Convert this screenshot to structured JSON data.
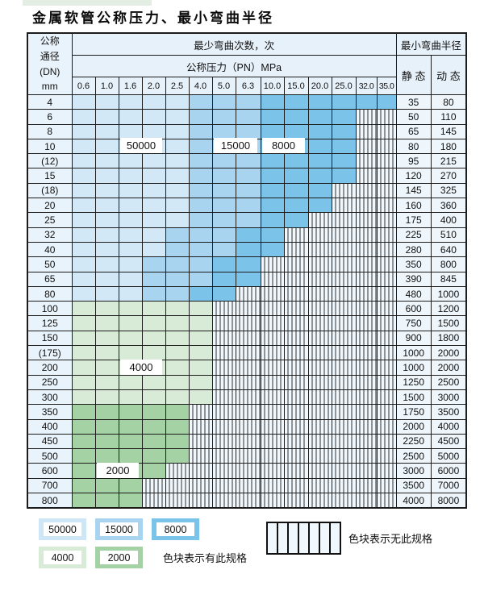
{
  "title": "金属软管公称压力、最小弯曲半径",
  "table": {
    "corner_lines": [
      "公称",
      "通径",
      "(DN)",
      "mm"
    ],
    "bend_cycles_header": "最少弯曲次数，次",
    "pressure_header": "公称压力（PN）MPa",
    "min_radius_header": "最小弯曲半径",
    "static_header": "静 态",
    "dynamic_header": "动 态",
    "pressure_columns": [
      "0.6",
      "1.0",
      "1.6",
      "2.0",
      "2.5",
      "4.0",
      "5.0",
      "6.3",
      "10.0",
      "15.0",
      "20.0",
      "25.0",
      "32.0",
      "35.0"
    ],
    "rows": [
      {
        "dn": "4",
        "zone": "blue",
        "colored": 14,
        "med_from": 5,
        "dark_from": 8,
        "static": "35",
        "dynamic": "80"
      },
      {
        "dn": "6",
        "zone": "blue",
        "colored": 12,
        "med_from": 5,
        "dark_from": 8,
        "static": "50",
        "dynamic": "110"
      },
      {
        "dn": "8",
        "zone": "blue",
        "colored": 12,
        "med_from": 5,
        "dark_from": 8,
        "static": "65",
        "dynamic": "145"
      },
      {
        "dn": "10",
        "zone": "blue",
        "colored": 12,
        "med_from": 5,
        "dark_from": 8,
        "static": "80",
        "dynamic": "180"
      },
      {
        "dn": "(12)",
        "zone": "blue",
        "colored": 12,
        "med_from": 5,
        "dark_from": 8,
        "static": "95",
        "dynamic": "215"
      },
      {
        "dn": "15",
        "zone": "blue",
        "colored": 12,
        "med_from": 5,
        "dark_from": 8,
        "static": "120",
        "dynamic": "270"
      },
      {
        "dn": "(18)",
        "zone": "blue",
        "colored": 11,
        "med_from": 5,
        "dark_from": 8,
        "static": "145",
        "dynamic": "325"
      },
      {
        "dn": "20",
        "zone": "blue",
        "colored": 11,
        "med_from": 5,
        "dark_from": 8,
        "static": "160",
        "dynamic": "360"
      },
      {
        "dn": "25",
        "zone": "blue",
        "colored": 10,
        "med_from": 5,
        "dark_from": 8,
        "static": "175",
        "dynamic": "400"
      },
      {
        "dn": "32",
        "zone": "blue",
        "colored": 9,
        "med_from": 4,
        "dark_from": 7,
        "static": "225",
        "dynamic": "510"
      },
      {
        "dn": "40",
        "zone": "blue",
        "colored": 9,
        "med_from": 4,
        "dark_from": 7,
        "static": "280",
        "dynamic": "640"
      },
      {
        "dn": "50",
        "zone": "blue",
        "colored": 8,
        "med_from": 3,
        "dark_from": 6,
        "static": "350",
        "dynamic": "800"
      },
      {
        "dn": "65",
        "zone": "blue",
        "colored": 8,
        "med_from": 3,
        "dark_from": 6,
        "static": "390",
        "dynamic": "845"
      },
      {
        "dn": "80",
        "zone": "blue",
        "colored": 7,
        "med_from": 3,
        "dark_from": 5,
        "static": "480",
        "dynamic": "1000"
      },
      {
        "dn": "100",
        "zone": "green-light",
        "colored": 6,
        "static": "600",
        "dynamic": "1200"
      },
      {
        "dn": "125",
        "zone": "green-light",
        "colored": 6,
        "static": "750",
        "dynamic": "1500"
      },
      {
        "dn": "150",
        "zone": "green-light",
        "colored": 6,
        "static": "900",
        "dynamic": "1800"
      },
      {
        "dn": "(175)",
        "zone": "green-light",
        "colored": 6,
        "static": "1000",
        "dynamic": "2000"
      },
      {
        "dn": "200",
        "zone": "green-light",
        "colored": 6,
        "static": "1000",
        "dynamic": "2000"
      },
      {
        "dn": "250",
        "zone": "green-light",
        "colored": 6,
        "static": "1250",
        "dynamic": "2500"
      },
      {
        "dn": "300",
        "zone": "green-light",
        "colored": 6,
        "static": "1500",
        "dynamic": "3000"
      },
      {
        "dn": "350",
        "zone": "green-mid",
        "colored": 5,
        "static": "1750",
        "dynamic": "3500"
      },
      {
        "dn": "400",
        "zone": "green-mid",
        "colored": 5,
        "static": "2000",
        "dynamic": "4000"
      },
      {
        "dn": "450",
        "zone": "green-mid",
        "colored": 5,
        "static": "2250",
        "dynamic": "4500"
      },
      {
        "dn": "500",
        "zone": "green-mid",
        "colored": 5,
        "static": "2500",
        "dynamic": "5000"
      },
      {
        "dn": "600",
        "zone": "green-mid",
        "colored": 4,
        "static": "3000",
        "dynamic": "6000"
      },
      {
        "dn": "700",
        "zone": "green-mid",
        "colored": 3,
        "static": "3500",
        "dynamic": "7000"
      },
      {
        "dn": "800",
        "zone": "green-mid",
        "colored": 3,
        "static": "4000",
        "dynamic": "8000"
      }
    ]
  },
  "overlays": [
    {
      "text": "50000",
      "row_dn": "10",
      "col": 2,
      "span": 2
    },
    {
      "text": "15000",
      "row_dn": "10",
      "col": 6,
      "span": 2
    },
    {
      "text": "8000",
      "row_dn": "10",
      "col": 8,
      "span": 2
    },
    {
      "text": "4000",
      "row_dn": "200",
      "col": 2,
      "span": 2
    },
    {
      "text": "2000",
      "row_dn": "600",
      "col": 1,
      "span": 2
    }
  ],
  "legend": {
    "available_label": "色块表示有此规格",
    "unavailable_label": "色块表示无此规格",
    "swatches": [
      {
        "value": "50000",
        "color": "#cfe6f6"
      },
      {
        "value": "15000",
        "color": "#a8d4f0"
      },
      {
        "value": "8000",
        "color": "#7cc3ea"
      },
      {
        "value": "4000",
        "color": "#d7ebd7"
      },
      {
        "value": "2000",
        "color": "#a5d2a5"
      }
    ]
  },
  "colors": {
    "light_blue": "#d3e8f6",
    "mid_blue": "#a8d4f0",
    "dark_blue": "#7cc3ea",
    "light_green": "#d7ebd7",
    "mid_green": "#a5d2a5",
    "hatch_bg": "#f1f8fd",
    "header_bg": "#e7f1fa",
    "label_bg": "#e9f3fb",
    "value_bg": "#eef6fc",
    "border": "#1c1c1c"
  }
}
